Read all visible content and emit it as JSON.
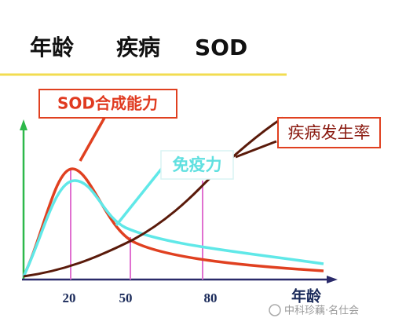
{
  "title": [
    "年龄",
    "疾病",
    "SOD"
  ],
  "labels": {
    "sod": "SOD合成能力",
    "immunity": "免疫力",
    "disease": "疾病发生率"
  },
  "x_axis": {
    "ticks": [
      "20",
      "50",
      "80"
    ],
    "label": "年龄"
  },
  "watermark": "中科珍藕·名仕会"
}
